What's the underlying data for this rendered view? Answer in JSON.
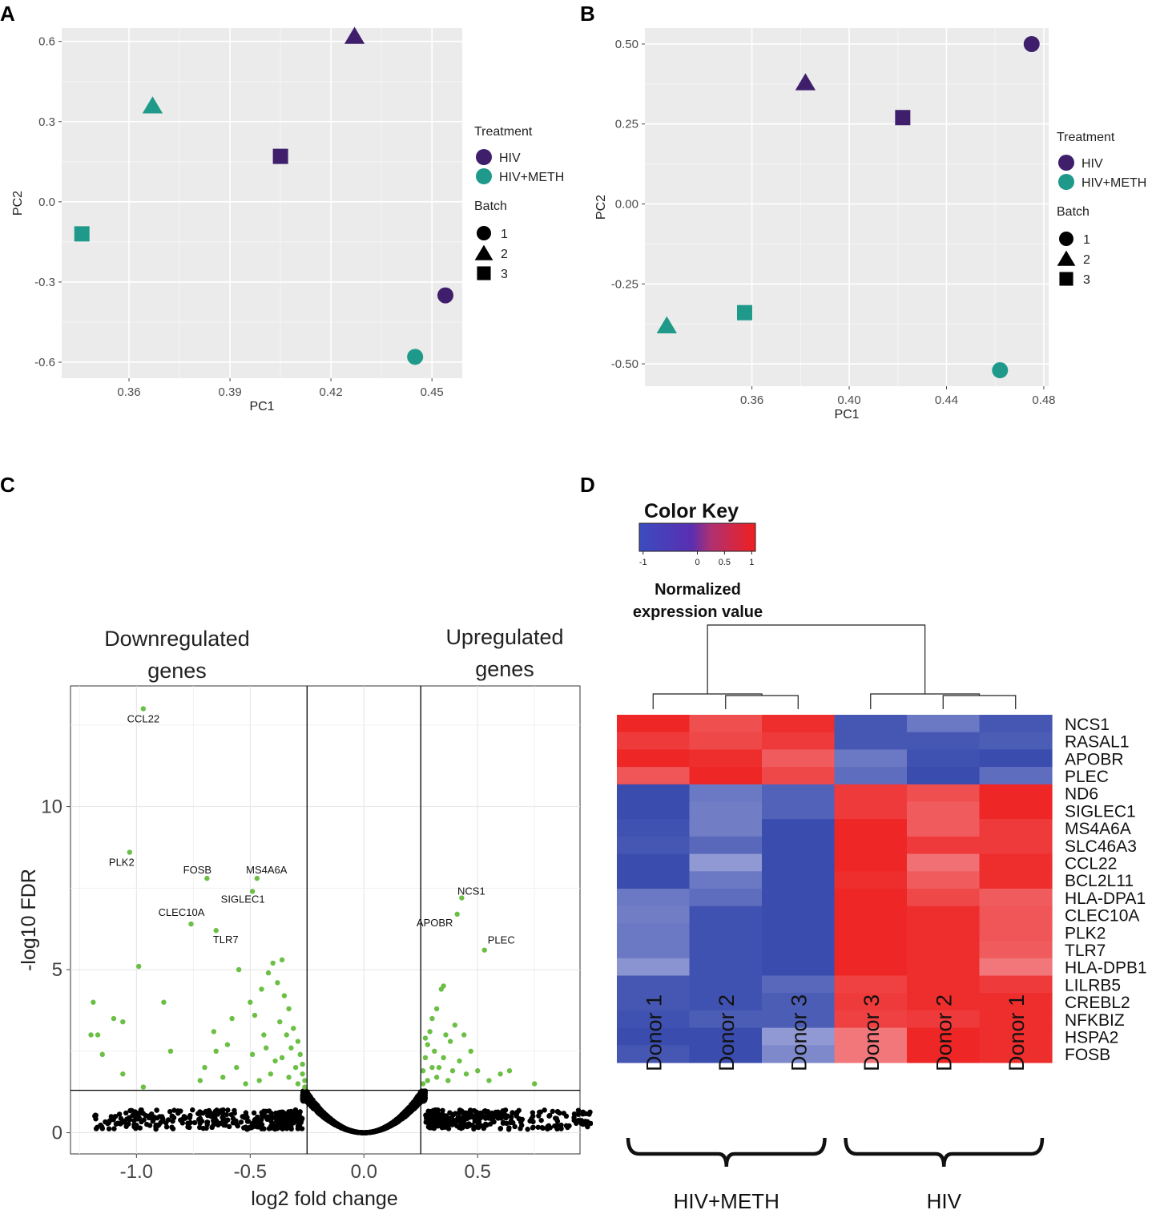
{
  "panel_labels": {
    "a": "A",
    "b": "B",
    "c": "C",
    "d": "D"
  },
  "legend": {
    "treatment_title": "Treatment",
    "treatment_items": [
      {
        "label": "HIV",
        "color": "#3f1f6b"
      },
      {
        "label": "HIV+METH",
        "color": "#1f9a8a"
      }
    ],
    "batch_title": "Batch",
    "batch_items": [
      {
        "label": "1",
        "shape": "circle"
      },
      {
        "label": "2",
        "shape": "triangle"
      },
      {
        "label": "3",
        "shape": "square"
      }
    ]
  },
  "chart_data": [
    {
      "id": "A",
      "type": "scatter",
      "title": "",
      "xlabel": "PC1",
      "ylabel": "PC2",
      "xlim": [
        0.34,
        0.459
      ],
      "ylim": [
        -0.66,
        0.65
      ],
      "xticks": [
        0.36,
        0.39,
        0.42,
        0.45
      ],
      "xtick_labels": [
        "0.36",
        "0.39",
        "0.42",
        "0.45"
      ],
      "yticks": [
        -0.6,
        -0.3,
        0.0,
        0.3,
        0.6
      ],
      "ytick_labels": [
        "-0.6",
        "-0.3",
        "0.0",
        "0.3",
        "0.6"
      ],
      "points": [
        {
          "x": 0.427,
          "y": 0.62,
          "treatment": "HIV",
          "batch": "2"
        },
        {
          "x": 0.367,
          "y": 0.36,
          "treatment": "HIV+METH",
          "batch": "2"
        },
        {
          "x": 0.405,
          "y": 0.17,
          "treatment": "HIV",
          "batch": "3"
        },
        {
          "x": 0.346,
          "y": -0.12,
          "treatment": "HIV+METH",
          "batch": "3"
        },
        {
          "x": 0.454,
          "y": -0.35,
          "treatment": "HIV",
          "batch": "1"
        },
        {
          "x": 0.445,
          "y": -0.58,
          "treatment": "HIV+METH",
          "batch": "1"
        }
      ]
    },
    {
      "id": "B",
      "type": "scatter",
      "title": "",
      "xlabel": "PC1",
      "ylabel": "PC2",
      "xlim": [
        0.316,
        0.482
      ],
      "ylim": [
        -0.57,
        0.55
      ],
      "xticks": [
        0.36,
        0.4,
        0.44,
        0.48
      ],
      "xtick_labels": [
        "0.36",
        "0.40",
        "0.44",
        "0.48"
      ],
      "yticks": [
        -0.5,
        -0.25,
        0.0,
        0.25,
        0.5
      ],
      "ytick_labels": [
        "-0.50",
        "-0.25",
        "0.00",
        "0.25",
        "0.50"
      ],
      "points": [
        {
          "x": 0.475,
          "y": 0.5,
          "treatment": "HIV",
          "batch": "1"
        },
        {
          "x": 0.382,
          "y": 0.38,
          "treatment": "HIV",
          "batch": "2"
        },
        {
          "x": 0.422,
          "y": 0.27,
          "treatment": "HIV",
          "batch": "3"
        },
        {
          "x": 0.357,
          "y": -0.34,
          "treatment": "HIV+METH",
          "batch": "3"
        },
        {
          "x": 0.325,
          "y": -0.38,
          "treatment": "HIV+METH",
          "batch": "2"
        },
        {
          "x": 0.462,
          "y": -0.52,
          "treatment": "HIV+METH",
          "batch": "1"
        }
      ]
    },
    {
      "id": "C",
      "type": "scatter",
      "title": "",
      "xlabel": "log2 fold change",
      "ylabel": "-log10 FDR",
      "xlim": [
        -1.29,
        0.95
      ],
      "ylim": [
        -0.65,
        13.7
      ],
      "xticks": [
        -1.0,
        -0.5,
        0.0,
        0.5
      ],
      "xtick_labels": [
        "-1.0",
        "-0.5",
        "0.0",
        "0.5"
      ],
      "yticks": [
        0,
        5,
        10
      ],
      "ytick_labels": [
        "0",
        "5",
        "10"
      ],
      "thresholds": {
        "x": [
          -0.25,
          0.25
        ],
        "y": 1.3
      },
      "annotations": {
        "down": "Downregulated genes",
        "up": "Upregulated genes"
      },
      "labeled_genes": [
        {
          "gene": "CCL22",
          "x": -0.97,
          "y": 13.0
        },
        {
          "gene": "PLK2",
          "x": -1.03,
          "y": 8.6
        },
        {
          "gene": "FOSB",
          "x": -0.69,
          "y": 7.8
        },
        {
          "gene": "MS4A6A",
          "x": -0.47,
          "y": 7.8
        },
        {
          "gene": "SIGLEC1",
          "x": -0.49,
          "y": 7.4
        },
        {
          "gene": "CLEC10A",
          "x": -0.76,
          "y": 6.4
        },
        {
          "gene": "TLR7",
          "x": -0.65,
          "y": 6.2
        },
        {
          "gene": "NCS1",
          "x": 0.43,
          "y": 7.2
        },
        {
          "gene": "APOBR",
          "x": 0.41,
          "y": 6.7
        },
        {
          "gene": "PLEC",
          "x": 0.53,
          "y": 5.6
        }
      ],
      "significant_points": [
        {
          "x": -0.88,
          "y": 4.0
        },
        {
          "x": -0.85,
          "y": 2.5
        },
        {
          "x": -0.99,
          "y": 5.1
        },
        {
          "x": -1.19,
          "y": 4.0
        },
        {
          "x": -1.2,
          "y": 3.0
        },
        {
          "x": -1.17,
          "y": 3.0
        },
        {
          "x": -1.15,
          "y": 2.4
        },
        {
          "x": -1.1,
          "y": 3.5
        },
        {
          "x": -1.06,
          "y": 3.4
        },
        {
          "x": -1.06,
          "y": 1.8
        },
        {
          "x": -0.97,
          "y": 1.4
        },
        {
          "x": -0.55,
          "y": 5.0
        },
        {
          "x": -0.58,
          "y": 3.5
        },
        {
          "x": -0.6,
          "y": 2.7
        },
        {
          "x": -0.65,
          "y": 2.5
        },
        {
          "x": -0.7,
          "y": 2.0
        },
        {
          "x": -0.72,
          "y": 1.6
        },
        {
          "x": -0.5,
          "y": 4.0
        },
        {
          "x": -0.48,
          "y": 3.6
        },
        {
          "x": -0.45,
          "y": 4.4
        },
        {
          "x": -0.42,
          "y": 4.9
        },
        {
          "x": -0.4,
          "y": 5.2
        },
        {
          "x": -0.38,
          "y": 4.6
        },
        {
          "x": -0.36,
          "y": 5.3
        },
        {
          "x": -0.35,
          "y": 4.2
        },
        {
          "x": -0.33,
          "y": 3.8
        },
        {
          "x": -0.31,
          "y": 3.2
        },
        {
          "x": -0.29,
          "y": 2.8
        },
        {
          "x": -0.28,
          "y": 2.4
        },
        {
          "x": -0.27,
          "y": 2.1
        },
        {
          "x": -0.27,
          "y": 1.8
        },
        {
          "x": -0.26,
          "y": 1.6
        },
        {
          "x": -0.26,
          "y": 1.4
        },
        {
          "x": -0.3,
          "y": 2.0
        },
        {
          "x": -0.32,
          "y": 2.6
        },
        {
          "x": -0.34,
          "y": 3.0
        },
        {
          "x": -0.37,
          "y": 3.4
        },
        {
          "x": -0.39,
          "y": 2.2
        },
        {
          "x": -0.41,
          "y": 1.8
        },
        {
          "x": -0.43,
          "y": 2.6
        },
        {
          "x": -0.46,
          "y": 1.6
        },
        {
          "x": -0.49,
          "y": 2.4
        },
        {
          "x": -0.52,
          "y": 1.5
        },
        {
          "x": -0.56,
          "y": 2.0
        },
        {
          "x": -0.62,
          "y": 1.7
        },
        {
          "x": -0.66,
          "y": 3.1
        },
        {
          "x": -0.44,
          "y": 3.0
        },
        {
          "x": -0.36,
          "y": 2.3
        },
        {
          "x": -0.33,
          "y": 1.7
        },
        {
          "x": -0.29,
          "y": 1.5
        },
        {
          "x": 0.26,
          "y": 1.5
        },
        {
          "x": 0.26,
          "y": 1.9
        },
        {
          "x": 0.27,
          "y": 2.3
        },
        {
          "x": 0.28,
          "y": 2.7
        },
        {
          "x": 0.29,
          "y": 3.1
        },
        {
          "x": 0.3,
          "y": 3.5
        },
        {
          "x": 0.31,
          "y": 2.5
        },
        {
          "x": 0.32,
          "y": 3.8
        },
        {
          "x": 0.33,
          "y": 2.0
        },
        {
          "x": 0.34,
          "y": 4.4
        },
        {
          "x": 0.35,
          "y": 4.5
        },
        {
          "x": 0.36,
          "y": 3.0
        },
        {
          "x": 0.38,
          "y": 2.8
        },
        {
          "x": 0.4,
          "y": 3.3
        },
        {
          "x": 0.42,
          "y": 2.2
        },
        {
          "x": 0.44,
          "y": 3.0
        },
        {
          "x": 0.45,
          "y": 1.8
        },
        {
          "x": 0.47,
          "y": 2.5
        },
        {
          "x": 0.5,
          "y": 1.9
        },
        {
          "x": 0.55,
          "y": 1.6
        },
        {
          "x": 0.6,
          "y": 1.8
        },
        {
          "x": 0.64,
          "y": 1.9
        },
        {
          "x": 0.75,
          "y": 1.5
        },
        {
          "x": 0.28,
          "y": 1.6
        },
        {
          "x": 0.3,
          "y": 2.0
        },
        {
          "x": 0.32,
          "y": 1.7
        },
        {
          "x": 0.35,
          "y": 2.3
        },
        {
          "x": 0.37,
          "y": 1.6
        },
        {
          "x": 0.39,
          "y": 1.9
        },
        {
          "x": 0.27,
          "y": 2.9
        }
      ]
    },
    {
      "id": "D",
      "type": "heatmap",
      "title": "Color Key",
      "color_key": {
        "ticks": [
          "-1",
          "0",
          "0.5",
          "1"
        ],
        "caption_line1": "Normalized",
        "caption_line2": "expression value"
      },
      "genes": [
        "NCS1",
        "RASAL1",
        "APOBR",
        "PLEC",
        "ND6",
        "SIGLEC1",
        "MS4A6A",
        "SLC46A3",
        "CCL22",
        "BCL2L11",
        "HLA-DPA1",
        "CLEC10A",
        "PLK2",
        "TLR7",
        "HLA-DPB1",
        "LILRB5",
        "CREBL2",
        "NFKBIZ",
        "HSPA2",
        "FOSB"
      ],
      "columns": [
        "Donor 1",
        "Donor 2",
        "Donor 3",
        "Donor 3",
        "Donor 2",
        "Donor 1"
      ],
      "groups": [
        {
          "label": "HIV+METH",
          "columns": [
            0,
            1,
            2
          ]
        },
        {
          "label": "HIV",
          "columns": [
            3,
            4,
            5
          ]
        }
      ],
      "values": [
        [
          1.0,
          0.7,
          0.95,
          -0.9,
          -0.6,
          -0.9
        ],
        [
          0.85,
          0.75,
          0.85,
          -0.9,
          -0.9,
          -0.85
        ],
        [
          1.0,
          0.95,
          0.6,
          -0.6,
          -0.95,
          -1.0
        ],
        [
          0.65,
          1.0,
          0.75,
          -0.7,
          -1.0,
          -0.7
        ],
        [
          -1.0,
          -0.6,
          -0.8,
          0.85,
          0.7,
          1.0
        ],
        [
          -1.0,
          -0.55,
          -0.8,
          0.85,
          0.6,
          1.0
        ],
        [
          -0.95,
          -0.55,
          -1.0,
          1.0,
          0.6,
          0.85
        ],
        [
          -0.9,
          -0.75,
          -1.0,
          1.0,
          0.85,
          0.85
        ],
        [
          -1.0,
          -0.3,
          -1.0,
          1.0,
          0.45,
          0.95
        ],
        [
          -1.0,
          -0.6,
          -1.0,
          0.95,
          0.6,
          0.95
        ],
        [
          -0.6,
          -0.7,
          -1.0,
          1.0,
          0.75,
          0.6
        ],
        [
          -0.55,
          -0.95,
          -1.0,
          1.0,
          0.95,
          0.65
        ],
        [
          -0.6,
          -0.95,
          -1.0,
          1.0,
          0.95,
          0.65
        ],
        [
          -0.6,
          -0.95,
          -1.0,
          1.0,
          0.95,
          0.6
        ],
        [
          -0.35,
          -0.95,
          -1.0,
          1.0,
          0.95,
          0.4
        ],
        [
          -0.9,
          -0.95,
          -0.75,
          0.8,
          0.95,
          0.85
        ],
        [
          -0.9,
          -0.95,
          -0.85,
          0.85,
          0.95,
          0.95
        ],
        [
          -0.95,
          -0.85,
          -0.85,
          0.8,
          0.85,
          0.95
        ],
        [
          -1.0,
          -1.0,
          -0.3,
          0.4,
          1.0,
          0.95
        ],
        [
          -0.9,
          -1.0,
          -0.45,
          0.4,
          1.0,
          0.95
        ]
      ]
    }
  ]
}
